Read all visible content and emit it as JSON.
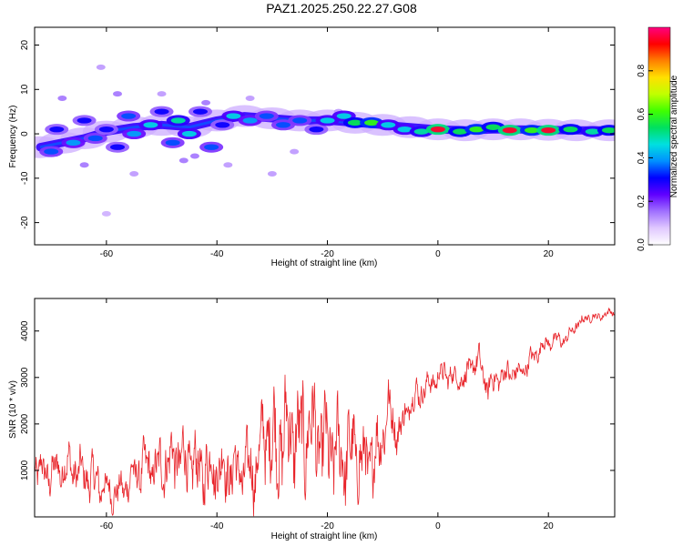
{
  "title": "PAZ1.2025.250.22.27.G08",
  "chart_data": [
    {
      "type": "heatmap",
      "xlabel": "Height of straight line (km)",
      "ylabel": "Frequency (Hz)",
      "xlim": [
        -73,
        32
      ],
      "ylim": [
        -25,
        24
      ],
      "xticks": [
        -60,
        -40,
        -20,
        0,
        20
      ],
      "yticks": [
        -20,
        -10,
        0,
        10,
        20
      ],
      "grid": false,
      "colorbar": {
        "label": "Normalized spectral amplitude",
        "range": [
          0,
          1
        ],
        "ticks": [
          0.0,
          0.2,
          0.4,
          0.6,
          0.8
        ],
        "colormap": [
          "#ffffff",
          "#e0c8ff",
          "#a070ff",
          "#6000ff",
          "#0000ff",
          "#0090ff",
          "#00e0e0",
          "#00e060",
          "#40ff00",
          "#c0ff00",
          "#ffe000",
          "#ff8000",
          "#ff0000",
          "#ff0080"
        ]
      },
      "ridge": [
        [
          -72,
          -3
        ],
        [
          -68,
          -2
        ],
        [
          -64,
          -1
        ],
        [
          -60,
          0.5
        ],
        [
          -55,
          1.5
        ],
        [
          -50,
          2
        ],
        [
          -45,
          1.5
        ],
        [
          -40,
          3
        ],
        [
          -35,
          4
        ],
        [
          -30,
          3.5
        ],
        [
          -25,
          3
        ],
        [
          -20,
          3
        ],
        [
          -15,
          2.5
        ],
        [
          -10,
          2
        ],
        [
          -5,
          1.5
        ],
        [
          0,
          1
        ],
        [
          5,
          0.8
        ],
        [
          10,
          1
        ],
        [
          15,
          1
        ],
        [
          20,
          0.9
        ],
        [
          25,
          0.8
        ],
        [
          31,
          0.8
        ]
      ],
      "blobs": [
        {
          "x": -70,
          "y": -4,
          "a": 0.35
        },
        {
          "x": -69,
          "y": 1,
          "a": 0.3
        },
        {
          "x": -66,
          "y": -2,
          "a": 0.4
        },
        {
          "x": -64,
          "y": 3,
          "a": 0.3
        },
        {
          "x": -62,
          "y": -1,
          "a": 0.35
        },
        {
          "x": -60,
          "y": 1,
          "a": 0.3
        },
        {
          "x": -58,
          "y": -3,
          "a": 0.3
        },
        {
          "x": -56,
          "y": 4,
          "a": 0.35
        },
        {
          "x": -55,
          "y": 0,
          "a": 0.4
        },
        {
          "x": -52,
          "y": 2,
          "a": 0.45
        },
        {
          "x": -50,
          "y": 5,
          "a": 0.3
        },
        {
          "x": -48,
          "y": -2,
          "a": 0.35
        },
        {
          "x": -47,
          "y": 3,
          "a": 0.5
        },
        {
          "x": -45,
          "y": 0,
          "a": 0.45
        },
        {
          "x": -43,
          "y": 5,
          "a": 0.3
        },
        {
          "x": -41,
          "y": -3,
          "a": 0.35
        },
        {
          "x": -39,
          "y": 2,
          "a": 0.3
        },
        {
          "x": -37,
          "y": 4,
          "a": 0.45
        },
        {
          "x": -34,
          "y": 3,
          "a": 0.4
        },
        {
          "x": -31,
          "y": 4,
          "a": 0.35
        },
        {
          "x": -28,
          "y": 2,
          "a": 0.35
        },
        {
          "x": -25,
          "y": 3,
          "a": 0.35
        },
        {
          "x": -22,
          "y": 1,
          "a": 0.3
        },
        {
          "x": -20,
          "y": 3,
          "a": 0.45
        },
        {
          "x": -17,
          "y": 4,
          "a": 0.45
        },
        {
          "x": -15,
          "y": 2.5,
          "a": 0.55
        },
        {
          "x": -12,
          "y": 2.5,
          "a": 0.6
        },
        {
          "x": -9,
          "y": 2,
          "a": 0.45
        },
        {
          "x": -6,
          "y": 1,
          "a": 0.45
        },
        {
          "x": -3,
          "y": 0.5,
          "a": 0.5
        },
        {
          "x": 0,
          "y": 1,
          "a": 0.95
        },
        {
          "x": 4,
          "y": 0.5,
          "a": 0.55
        },
        {
          "x": 7,
          "y": 1,
          "a": 0.6
        },
        {
          "x": 10,
          "y": 1.5,
          "a": 0.55
        },
        {
          "x": 13,
          "y": 0.8,
          "a": 0.95
        },
        {
          "x": 17,
          "y": 0.8,
          "a": 0.6
        },
        {
          "x": 20,
          "y": 0.8,
          "a": 0.95
        },
        {
          "x": 24,
          "y": 1,
          "a": 0.55
        },
        {
          "x": 28,
          "y": 0.5,
          "a": 0.5
        },
        {
          "x": 31,
          "y": 0.8,
          "a": 0.55
        }
      ],
      "speckles": [
        {
          "x": -68,
          "y": 8,
          "a": 0.15
        },
        {
          "x": -64,
          "y": -7,
          "a": 0.15
        },
        {
          "x": -61,
          "y": 15,
          "a": 0.12
        },
        {
          "x": -58,
          "y": 9,
          "a": 0.15
        },
        {
          "x": -55,
          "y": -9,
          "a": 0.12
        },
        {
          "x": -50,
          "y": 9,
          "a": 0.12
        },
        {
          "x": -46,
          "y": -6,
          "a": 0.15
        },
        {
          "x": -42,
          "y": 7,
          "a": 0.15
        },
        {
          "x": -38,
          "y": -7,
          "a": 0.12
        },
        {
          "x": -34,
          "y": 8,
          "a": 0.12
        },
        {
          "x": -30,
          "y": -9,
          "a": 0.12
        },
        {
          "x": -60,
          "y": -18,
          "a": 0.1
        },
        {
          "x": -44,
          "y": -5,
          "a": 0.15
        },
        {
          "x": -26,
          "y": -4,
          "a": 0.12
        },
        {
          "x": -18,
          "y": 5,
          "a": 0.12
        }
      ]
    },
    {
      "type": "line",
      "xlabel": "Height of straight line (km)",
      "ylabel": "SNR (10 * v/v)",
      "xlim": [
        -73,
        32
      ],
      "ylim": [
        0,
        4700
      ],
      "xticks": [
        -60,
        -40,
        -20,
        0,
        20
      ],
      "yticks": [
        1000,
        2000,
        3000,
        4000
      ],
      "grid": false,
      "color": "#e8242a",
      "series": [
        {
          "x": [
            -73,
            -71,
            -69,
            -67,
            -65,
            -63,
            -61,
            -59,
            -57,
            -55,
            -53,
            -51,
            -49,
            -47,
            -45,
            -43,
            -41,
            -39,
            -37,
            -35,
            -33,
            -31,
            -29,
            -27,
            -25,
            -23,
            -21,
            -19,
            -17,
            -15,
            -13,
            -11,
            -9,
            -7,
            -5,
            -3,
            -1,
            1,
            3,
            5,
            7,
            9,
            11,
            13,
            15,
            17,
            19,
            21,
            23,
            25,
            27,
            29,
            31
          ],
          "values": [
            1100,
            900,
            1000,
            1100,
            950,
            850,
            700,
            500,
            600,
            900,
            1100,
            1000,
            1200,
            1300,
            1150,
            1000,
            1100,
            1050,
            1000,
            1000,
            1050,
            1900,
            1500,
            1900,
            1600,
            2000,
            1500,
            1400,
            1300,
            1400,
            1100,
            1400,
            2300,
            1800,
            2500,
            2700,
            2900,
            3100,
            3000,
            3000,
            3400,
            2800,
            3000,
            3100,
            3100,
            3400,
            3700,
            3800,
            3800,
            4100,
            4300,
            4300,
            4400
          ],
          "amplitude": [
            500,
            500,
            500,
            550,
            550,
            550,
            500,
            400,
            400,
            550,
            600,
            650,
            750,
            800,
            850,
            850,
            850,
            800,
            800,
            850,
            900,
            1200,
            1300,
            1350,
            1300,
            1300,
            1200,
            1200,
            1150,
            1100,
            1000,
            900,
            700,
            500,
            400,
            350,
            300,
            300,
            300,
            350,
            400,
            350,
            300,
            300,
            250,
            250,
            200,
            200,
            150,
            150,
            120,
            100,
            100
          ]
        }
      ]
    }
  ]
}
